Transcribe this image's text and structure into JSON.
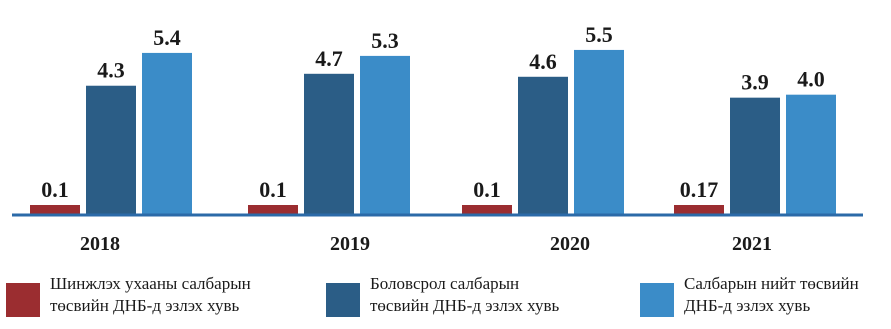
{
  "chart_data": {
    "type": "bar",
    "categories": [
      "2018",
      "2019",
      "2020",
      "2021"
    ],
    "series": [
      {
        "name": "Шинжлэх ухааны салбарын төсвийн ДНБ-д эзлэх хувь",
        "values": [
          0.1,
          0.1,
          0.1,
          0.17
        ],
        "labels": [
          "0.1",
          "0.1",
          "0.1",
          "0.17"
        ],
        "color": "#9b2d30"
      },
      {
        "name": "Боловсрол салбарын төсвийн ДНБ-д эзлэх хувь",
        "values": [
          4.3,
          4.7,
          4.6,
          3.9
        ],
        "labels": [
          "4.3",
          "4.7",
          "4.6",
          "3.9"
        ],
        "color": "#2b5d86"
      },
      {
        "name": "Салбарын нийт төсвийн ДНБ-д эзлэх хувь",
        "values": [
          5.4,
          5.3,
          5.5,
          4.0
        ],
        "labels": [
          "5.4",
          "5.3",
          "5.5",
          "4.0"
        ],
        "color": "#3b8cc8"
      }
    ],
    "ylim": [
      0,
      5.9
    ],
    "axis_color": "#2b6aa8",
    "grid": false,
    "legend_position": "bottom"
  },
  "legend": [
    {
      "line1": "Шинжлэх ухааны салбарын",
      "line2": "төсвийн ДНБ-д эзлэх хувь"
    },
    {
      "line1": "Боловсрол салбарын",
      "line2": "төсвийн ДНБ-д эзлэх хувь"
    },
    {
      "line1": "Салбарын нийт төсвийн",
      "line2": "ДНБ-д эзлэх хувь"
    }
  ]
}
